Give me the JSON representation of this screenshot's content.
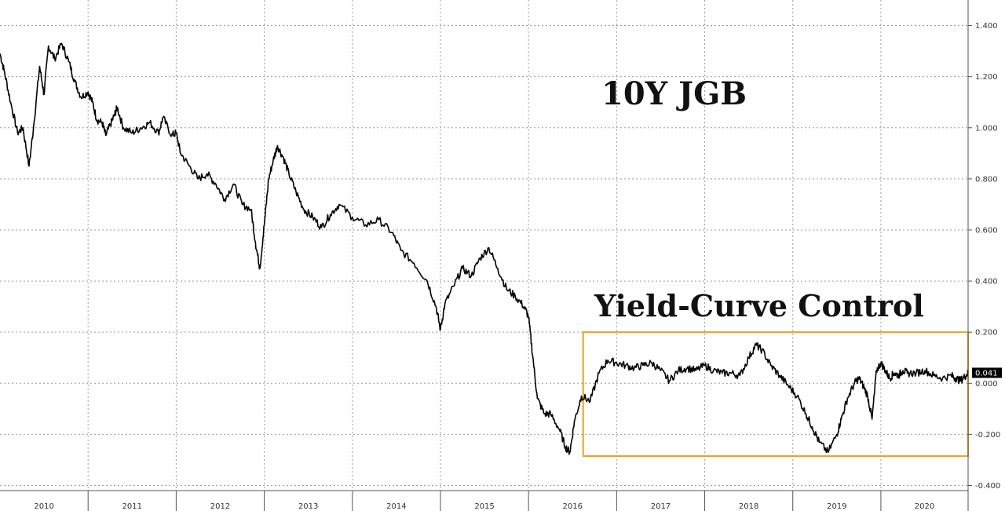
{
  "chart_data": {
    "type": "line",
    "title": "10Y JGB",
    "annotation": "Yield-Curve Control",
    "last_value_label": "0.041",
    "x_tick_labels": [
      "2010",
      "2011",
      "2012",
      "2013",
      "2014",
      "2015",
      "2016",
      "2017",
      "2018",
      "2019",
      "2020"
    ],
    "y_tick_labels": [
      "1.400",
      "1.200",
      "1.000",
      "0.800",
      "0.600",
      "0.400",
      "0.200",
      "0.000",
      "-0.200",
      "-0.400"
    ],
    "ylim": [
      -0.42,
      1.5
    ],
    "xlim": [
      2010.0,
      2020.99
    ],
    "grid": true,
    "y_axis_side": "right",
    "colors": {
      "line": "#000000",
      "box": "#f0a020",
      "grid": "#9a9a9a",
      "label_bg": "#000000"
    },
    "highlight_box": {
      "x_start": 2016.62,
      "x_end": 2020.99,
      "y_min": -0.285,
      "y_max": 0.2
    },
    "series": [
      {
        "x": [
          2010.0,
          2010.05,
          2010.12,
          2010.2,
          2010.26,
          2010.33,
          2010.38,
          2010.45,
          2010.5,
          2010.55,
          2010.62,
          2010.7,
          2010.78,
          2010.85,
          2010.92,
          2011.0,
          2011.05,
          2011.1,
          2011.16,
          2011.2,
          2011.25,
          2011.3,
          2011.33,
          2011.4,
          2011.5,
          2011.6,
          2011.7,
          2011.8,
          2011.85,
          2011.95,
          2012.0,
          2012.05,
          2012.15,
          2012.25,
          2012.35,
          2012.45,
          2012.55,
          2012.65,
          2012.75,
          2012.85,
          2012.9,
          2012.95,
          2013.0,
          2013.05,
          2013.1,
          2013.15,
          2013.22,
          2013.28,
          2013.36,
          2013.45,
          2013.55,
          2013.65,
          2013.75,
          2013.85,
          2014.0,
          2014.15,
          2014.3,
          2014.45,
          2014.55,
          2014.7,
          2014.85,
          2014.95,
          2015.0,
          2015.05,
          2015.15,
          2015.25,
          2015.35,
          2015.45,
          2015.55,
          2015.65,
          2015.75,
          2015.85,
          2015.95,
          2016.0,
          2016.05,
          2016.1,
          2016.18,
          2016.25,
          2016.35,
          2016.42,
          2016.47,
          2016.52,
          2016.6,
          2016.7,
          2016.8,
          2016.9,
          2017.0,
          2017.1,
          2017.2,
          2017.3,
          2017.4,
          2017.5,
          2017.6,
          2017.7,
          2017.8,
          2017.9,
          2018.0,
          2018.1,
          2018.2,
          2018.3,
          2018.4,
          2018.5,
          2018.58,
          2018.65,
          2018.75,
          2018.85,
          2018.95,
          2019.05,
          2019.15,
          2019.22,
          2019.3,
          2019.4,
          2019.5,
          2019.55,
          2019.62,
          2019.7,
          2019.75,
          2019.8,
          2019.85,
          2019.9,
          2019.95,
          2020.0,
          2020.05,
          2020.1,
          2020.15,
          2020.2,
          2020.25,
          2020.3,
          2020.4,
          2020.5,
          2020.6,
          2020.7,
          2020.8,
          2020.85,
          2020.9,
          2020.95,
          2020.99
        ],
        "y": [
          1.29,
          1.22,
          1.1,
          0.98,
          1.0,
          0.85,
          1.0,
          1.24,
          1.13,
          1.32,
          1.27,
          1.33,
          1.26,
          1.18,
          1.12,
          1.14,
          1.1,
          1.03,
          1.02,
          0.97,
          1.01,
          1.05,
          1.08,
          1.0,
          0.98,
          1.0,
          1.02,
          0.98,
          1.04,
          0.97,
          0.98,
          0.9,
          0.85,
          0.8,
          0.82,
          0.78,
          0.72,
          0.78,
          0.7,
          0.68,
          0.55,
          0.45,
          0.62,
          0.8,
          0.87,
          0.93,
          0.88,
          0.82,
          0.75,
          0.68,
          0.65,
          0.61,
          0.66,
          0.7,
          0.65,
          0.62,
          0.64,
          0.59,
          0.52,
          0.47,
          0.4,
          0.3,
          0.21,
          0.31,
          0.38,
          0.45,
          0.42,
          0.49,
          0.53,
          0.45,
          0.37,
          0.34,
          0.3,
          0.26,
          0.1,
          -0.06,
          -0.12,
          -0.12,
          -0.18,
          -0.25,
          -0.27,
          -0.15,
          -0.05,
          -0.07,
          0.04,
          0.09,
          0.08,
          0.07,
          0.06,
          0.07,
          0.08,
          0.05,
          0.01,
          0.05,
          0.06,
          0.05,
          0.07,
          0.05,
          0.04,
          0.04,
          0.03,
          0.1,
          0.15,
          0.13,
          0.07,
          0.03,
          -0.01,
          -0.05,
          -0.12,
          -0.17,
          -0.23,
          -0.27,
          -0.2,
          -0.14,
          -0.06,
          0.0,
          0.02,
          -0.01,
          -0.05,
          -0.14,
          0.05,
          0.08,
          0.05,
          0.02,
          0.04,
          0.03,
          0.05,
          0.04,
          0.04,
          0.05,
          0.03,
          0.02,
          0.03,
          0.02,
          0.01,
          0.025,
          0.041
        ]
      }
    ]
  }
}
